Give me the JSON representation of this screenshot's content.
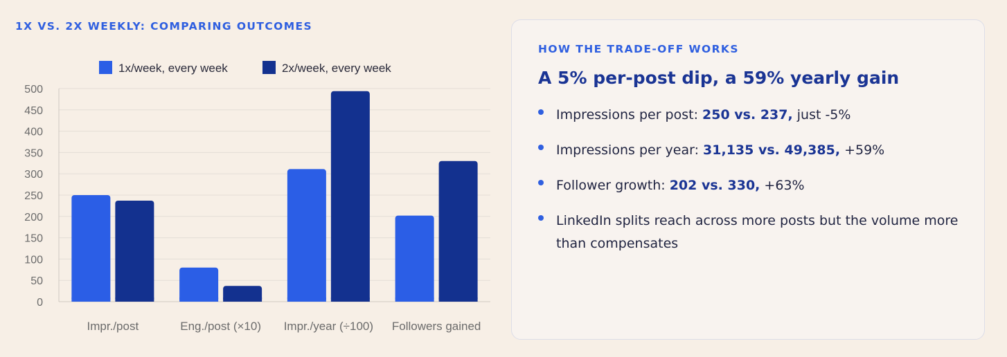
{
  "chart_title": "1X VS. 2X WEEKLY: COMPARING OUTCOMES",
  "chart_data": {
    "type": "bar",
    "categories": [
      "Impr./post",
      "Eng./post (×10)",
      "Impr./year (÷100)",
      "Followers gained"
    ],
    "series": [
      {
        "name": "1x/week, every week",
        "values": [
          250,
          80,
          311,
          202
        ],
        "color": "#2b5ee6"
      },
      {
        "name": "2x/week, every week",
        "values": [
          237,
          37,
          494,
          330
        ],
        "color": "#13318f"
      }
    ],
    "ylim": [
      0,
      500
    ],
    "yticks": [
      0,
      50,
      100,
      150,
      200,
      250,
      300,
      350,
      400,
      450,
      500
    ],
    "grid": true,
    "legend": "top"
  },
  "panel": {
    "eyebrow": "HOW THE TRADE-OFF WORKS",
    "heading": "A 5% per-post dip, a 59% yearly gain",
    "bullets": [
      {
        "lead": "Impressions per post: ",
        "strong": "250 vs. 237,",
        "tail": " just -5%"
      },
      {
        "lead": "Impressions per year: ",
        "strong": "31,135 vs. 49,385,",
        "tail": " +59%"
      },
      {
        "lead": "Follower growth: ",
        "strong": "202 vs. 330,",
        "tail": " +63%"
      },
      {
        "lead": "LinkedIn splits reach across more posts but the volume more than compensates",
        "strong": "",
        "tail": ""
      }
    ]
  }
}
